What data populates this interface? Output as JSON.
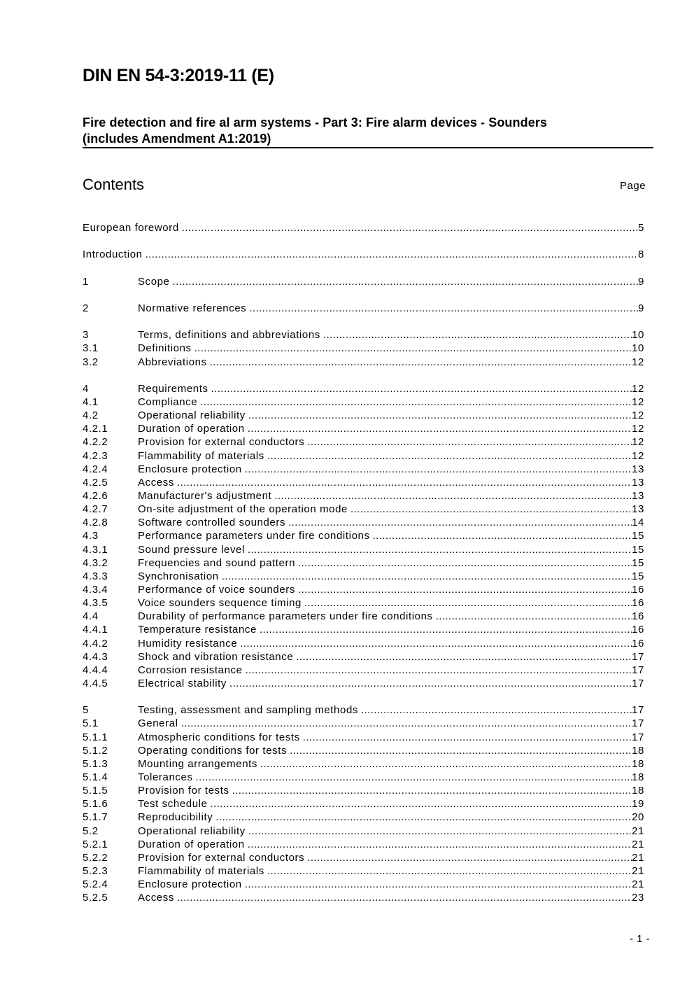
{
  "header": {
    "doc_id": "DIN EN 54-3:2019-11 (E)",
    "subtitle_line1": "Fire detection and fire al arm systems - Part 3: Fire alarm devices - Sounders",
    "subtitle_line2": "(includes Amendment A1:2019)"
  },
  "contents": {
    "heading": "Contents",
    "page_label": "Page",
    "groups": [
      [
        {
          "num": "",
          "title": "European foreword",
          "page": "5"
        }
      ],
      [
        {
          "num": "",
          "title": "Introduction",
          "page": "8"
        }
      ],
      [
        {
          "num": "1",
          "title": "Scope",
          "page": "9"
        }
      ],
      [
        {
          "num": "2",
          "title": "Normative references",
          "page": "9"
        }
      ],
      [
        {
          "num": "3",
          "title": "Terms, definitions and abbreviations",
          "page": "10"
        },
        {
          "num": "3.1",
          "title": "Definitions",
          "page": "10"
        },
        {
          "num": "3.2",
          "title": "Abbreviations",
          "page": "12"
        }
      ],
      [
        {
          "num": "4",
          "title": "Requirements",
          "page": "12"
        },
        {
          "num": "4.1",
          "title": "Compliance",
          "page": "12"
        },
        {
          "num": "4.2",
          "title": "Operational reliability",
          "page": "12"
        },
        {
          "num": "4.2.1",
          "title": "Duration of operation",
          "page": "12"
        },
        {
          "num": "4.2.2",
          "title": "Provision for external conductors",
          "page": "12"
        },
        {
          "num": "4.2.3",
          "title": "Flammability of materials",
          "page": "12"
        },
        {
          "num": "4.2.4",
          "title": "Enclosure protection",
          "page": "13"
        },
        {
          "num": "4.2.5",
          "title": "Access",
          "page": "13"
        },
        {
          "num": "4.2.6",
          "title": "Manufacturer's adjustment",
          "page": "13"
        },
        {
          "num": "4.2.7",
          "title": "On-site adjustment of the operation mode",
          "page": "13"
        },
        {
          "num": "4.2.8",
          "title": "Software controlled sounders",
          "page": "14"
        },
        {
          "num": "4.3",
          "title": "Performance parameters under fire conditions",
          "page": "15"
        },
        {
          "num": "4.3.1",
          "title": "Sound pressure level",
          "page": "15"
        },
        {
          "num": "4.3.2",
          "title": "Frequencies and sound pattern",
          "page": "15"
        },
        {
          "num": "4.3.3",
          "title": "Synchronisation",
          "page": "15"
        },
        {
          "num": "4.3.4",
          "title": "Performance of voice sounders",
          "page": "16"
        },
        {
          "num": "4.3.5",
          "title": "Voice sounders sequence timing",
          "page": "16"
        },
        {
          "num": "4.4",
          "title": "Durability of performance parameters under fire conditions",
          "page": "16"
        },
        {
          "num": "4.4.1",
          "title": "Temperature resistance",
          "page": "16"
        },
        {
          "num": "4.4.2",
          "title": "Humidity resistance",
          "page": "16"
        },
        {
          "num": "4.4.3",
          "title": "Shock and vibration resistance",
          "page": "17"
        },
        {
          "num": "4.4.4",
          "title": "Corrosion resistance",
          "page": "17"
        },
        {
          "num": "4.4.5",
          "title": "Electrical stability",
          "page": "17"
        }
      ],
      [
        {
          "num": "5",
          "title": "Testing, assessment and sampling methods",
          "page": "17"
        },
        {
          "num": "5.1",
          "title": "General",
          "page": "17"
        },
        {
          "num": "5.1.1",
          "title": "Atmospheric conditions for tests",
          "page": "17"
        },
        {
          "num": "5.1.2",
          "title": "Operating conditions for tests",
          "page": "18"
        },
        {
          "num": "5.1.3",
          "title": "Mounting arrangements",
          "page": "18"
        },
        {
          "num": "5.1.4",
          "title": "Tolerances",
          "page": "18"
        },
        {
          "num": "5.1.5",
          "title": "Provision for tests",
          "page": "18"
        },
        {
          "num": "5.1.6",
          "title": "Test schedule",
          "page": "19"
        },
        {
          "num": "5.1.7",
          "title": "Reproducibility",
          "page": "20"
        },
        {
          "num": "5.2",
          "title": "Operational reliability",
          "page": "21"
        },
        {
          "num": "5.2.1",
          "title": "Duration of operation",
          "page": "21"
        },
        {
          "num": "5.2.2",
          "title": "Provision for external conductors",
          "page": "21"
        },
        {
          "num": "5.2.3",
          "title": "Flammability of materials",
          "page": "21"
        },
        {
          "num": "5.2.4",
          "title": "Enclosure protection",
          "page": "21"
        },
        {
          "num": "5.2.5",
          "title": "Access",
          "page": "23"
        }
      ]
    ]
  },
  "footer": {
    "page_number": "- 1 -"
  }
}
